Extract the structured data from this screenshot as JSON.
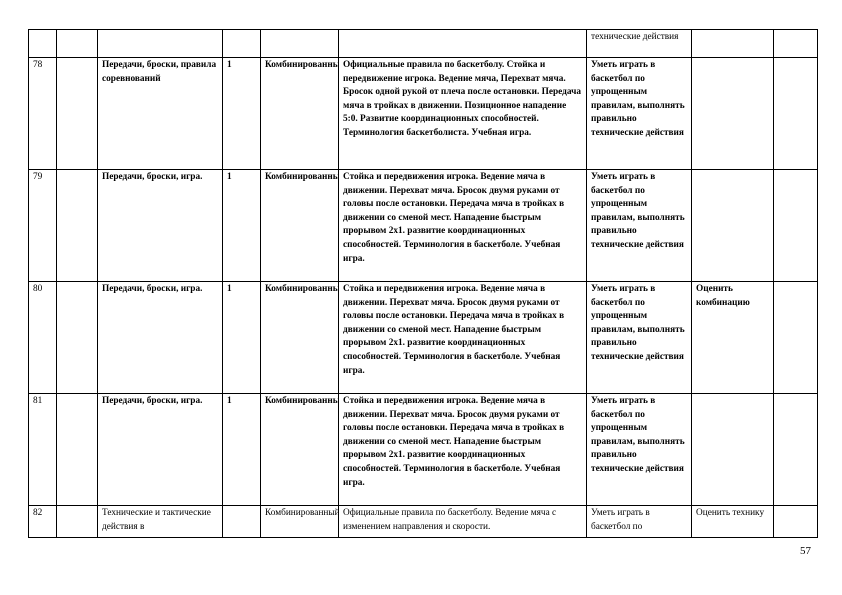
{
  "table": {
    "rows": [
      {
        "num": "",
        "date": "",
        "topic": "",
        "hours": "",
        "type": "",
        "content": "",
        "skills": "технические действия",
        "control": "",
        "note": ""
      },
      {
        "num": "78",
        "date": "",
        "topic": "Передачи, броски, правила соревнований",
        "hours": "1",
        "type": "Комбинированный.",
        "content": "Официальные правила по баскетболу. Стойка и передвижение игрока.  Ведение мяча, Перехват мяча. Бросок одной рукой от плеча после остановки. Передача мяча в тройках в движении. Позиционное нападение 5:0.  Развитие координационных способностей.  Терминология баскетболиста. Учебная игра.",
        "skills": "Уметь играть в баскетбол по упрощенным правилам, выполнять правильно технические действия",
        "control": "",
        "note": ""
      },
      {
        "num": "79",
        "date": "",
        "topic": "Передачи, броски, игра.",
        "hours": "1",
        "type": "Комбинированный",
        "content": "Стойка и передвижения игрока. Ведение мяча в движении. Перехват мяча. Бросок двумя руками от головы после остановки. Передача мяча в тройках в движении со сменой мест. Нападение быстрым прорывом 2х1. развитие координационных способностей. Терминология в баскетболе. Учебная игра.",
        "skills": "Уметь играть в баскетбол по упрощенным правилам, выполнять правильно технические действия",
        "control": "",
        "note": ""
      },
      {
        "num": "80",
        "date": "",
        "topic": "Передачи, броски, игра.",
        "hours": "1",
        "type": "Комбинированный",
        "content": "Стойка и передвижения игрока. Ведение мяча в движении. Перехват мяча. Бросок двумя руками от головы после остановки. Передача мяча в тройках в движении со сменой мест. Нападение быстрым прорывом 2х1. развитие координационных способностей. Терминология в баскетболе. Учебная игра.",
        "skills": "Уметь играть в баскетбол по упрощенным правилам, выполнять правильно технические действия",
        "control": "Оценить комбинацию",
        "note": ""
      },
      {
        "num": "81",
        "date": "",
        "topic": "Передачи, броски, игра.",
        "hours": "1",
        "type": "Комбинированный",
        "content": "Стойка и передвижения игрока. Ведение мяча в движении. Перехват мяча. Бросок двумя руками от головы после остановки. Передача мяча в тройках в движении со сменой мест. Нападение быстрым прорывом 2х1. развитие координационных способностей. Терминология в баскетболе. Учебная игра.",
        "skills": "Уметь играть в баскетбол по упрощенным правилам, выполнять правильно технические действия",
        "control": "",
        "note": ""
      },
      {
        "num": "82",
        "date": "",
        "topic": "Технические и тактические действия в",
        "hours": "",
        "type": "Комбинированный",
        "content": "Официальные правила по баскетболу. Ведение мяча с изменением направления и скорости.",
        "skills": "Уметь играть в баскетбол по",
        "control": "Оценить технику",
        "note": ""
      }
    ]
  },
  "page_number": "57"
}
